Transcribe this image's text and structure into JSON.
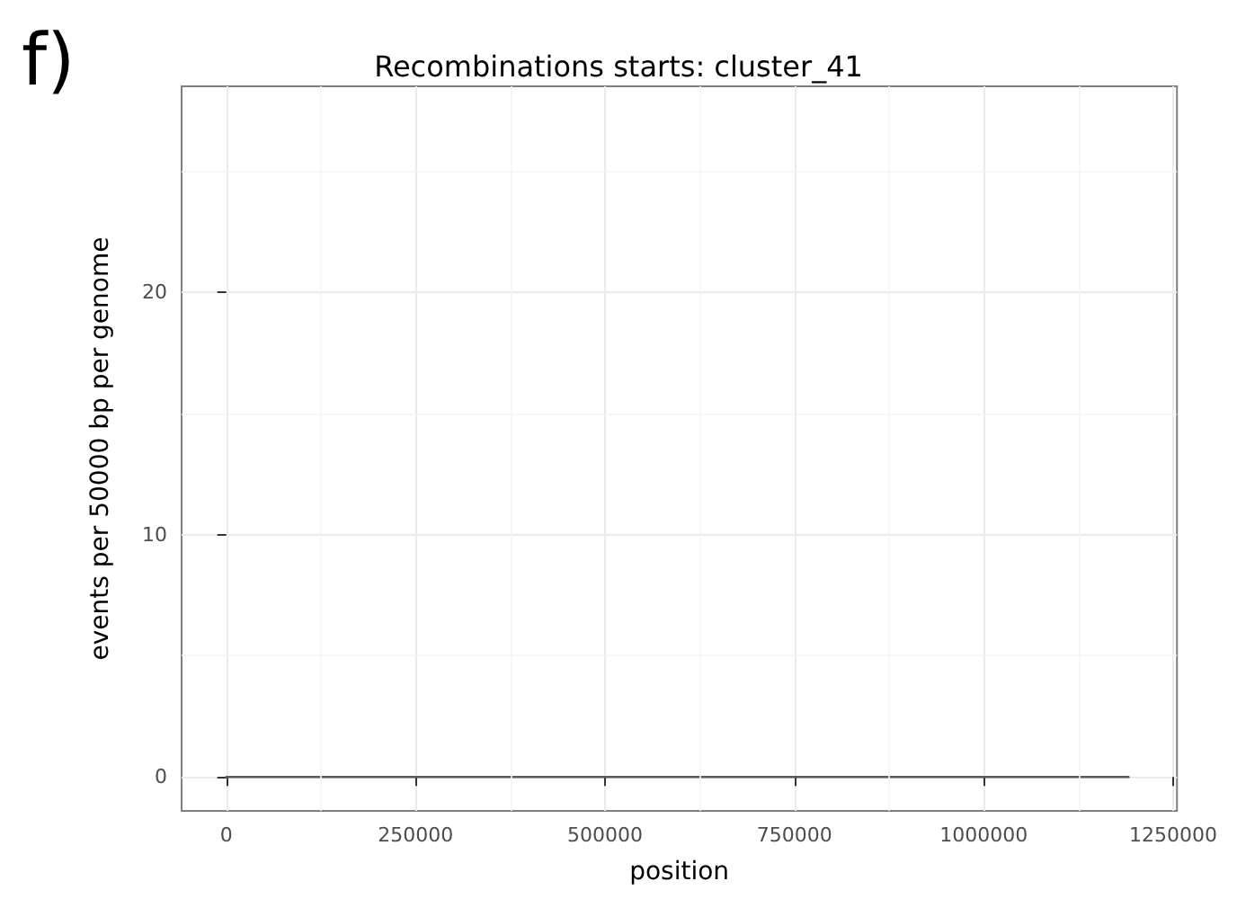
{
  "chart_data": {
    "type": "line",
    "title": "Recombinations starts: cluster_41",
    "xlabel": "position",
    "ylabel": "events per 50000 bp per genome",
    "annotations": [
      "f)"
    ],
    "x": [
      0,
      1191000
    ],
    "series": [
      {
        "color": "#595959",
        "values": [
          0,
          0
        ]
      }
    ],
    "xlim": [
      -59000,
      1255000
    ],
    "xticks": [
      0,
      250000,
      500000,
      750000,
      1000000,
      1250000
    ],
    "ylim": [
      -1.4,
      28.5
    ],
    "yticks": [
      0,
      10,
      20
    ],
    "grid": true,
    "marker": "none",
    "line_style": "solid"
  }
}
